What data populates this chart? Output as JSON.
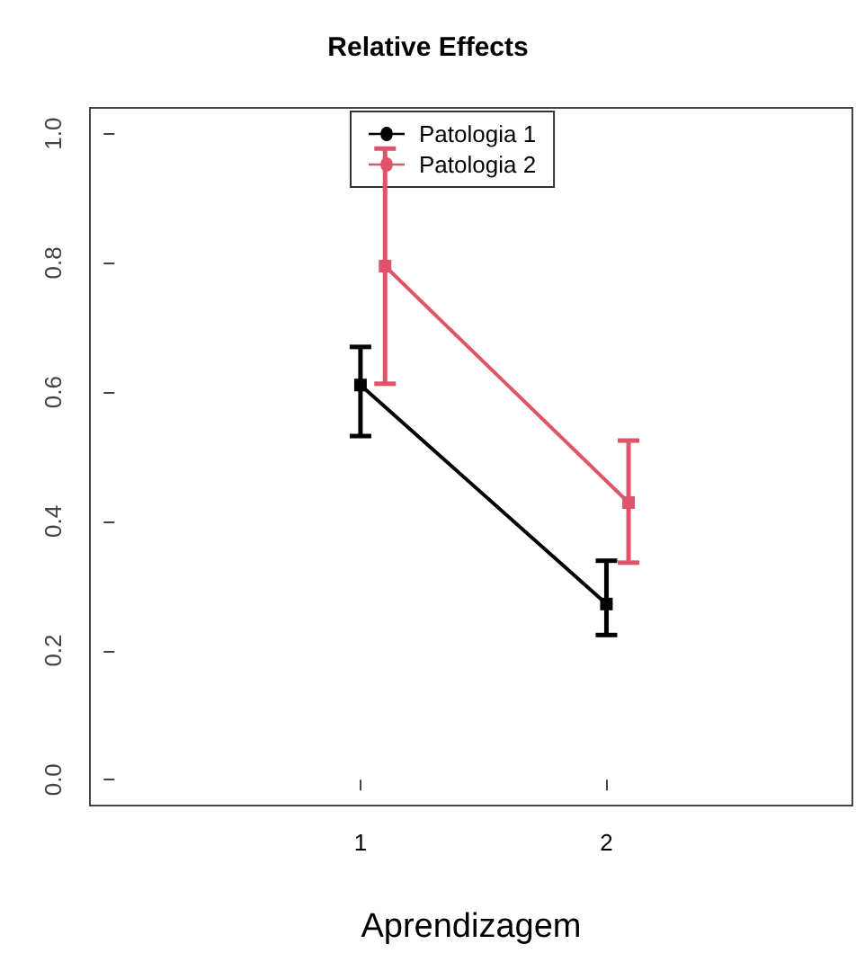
{
  "chart_data": {
    "type": "line",
    "title": "Relative Effects",
    "xlabel": "Aprendizagem",
    "series": [
      {
        "name": "Patologia 1",
        "color": "#000000",
        "x": [
          1,
          2
        ],
        "values": [
          0.611,
          0.272
        ],
        "errors": [
          [
            0.532,
            0.67
          ],
          [
            0.224,
            0.339
          ]
        ]
      },
      {
        "name": "Patologia 2",
        "color": "#df536b",
        "x": [
          1.1,
          2.09
        ],
        "values": [
          0.795,
          0.429
        ],
        "errors": [
          [
            0.613,
            0.977
          ],
          [
            0.336,
            0.525
          ]
        ]
      }
    ],
    "xlim": [
      -0.1,
      3.0
    ],
    "xticks": [
      1,
      2
    ],
    "ylim": [
      -0.04,
      1.04
    ],
    "yticks": [
      {
        "value": 0,
        "label": "0.0"
      },
      {
        "value": 0.2,
        "label": "0.2"
      },
      {
        "value": 0.4,
        "label": "0.4"
      },
      {
        "value": 0.6,
        "label": "0.6"
      },
      {
        "value": 0.8,
        "label": "0.8"
      },
      {
        "value": 1,
        "label": "1.0"
      }
    ],
    "grid": false,
    "legend": "top",
    "marker": "square",
    "line_style": "solid"
  }
}
